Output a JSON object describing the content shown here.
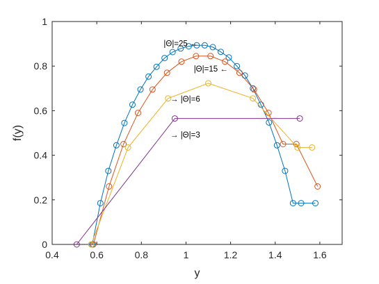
{
  "chart_data": {
    "type": "line",
    "xlabel": "y",
    "ylabel": "f(y)",
    "xlim": [
      0.4,
      1.7
    ],
    "ylim": [
      0,
      1
    ],
    "xticks": [
      "0.4",
      "0.6",
      "0.8",
      "1",
      "1.2",
      "1.4",
      "1.6"
    ],
    "yticks": [
      "0",
      "0.2",
      "0.4",
      "0.6",
      "0.8",
      "1"
    ],
    "grid": false,
    "box": true,
    "marker": "open-circle",
    "series": [
      {
        "color": "#0072BD",
        "x": [
          0.58,
          0.616,
          0.652,
          0.688,
          0.724,
          0.76,
          0.796,
          0.832,
          0.868,
          0.904,
          0.94,
          0.976,
          1.012,
          1.048,
          1.084,
          1.12,
          1.156,
          1.192,
          1.228,
          1.264,
          1.3,
          1.336,
          1.372,
          1.408,
          1.444,
          1.48,
          1.516,
          1.58
        ],
        "y": [
          0,
          0.185,
          0.33,
          0.445,
          0.545,
          0.627,
          0.695,
          0.753,
          0.797,
          0.836,
          0.863,
          0.879,
          0.889,
          0.893,
          0.893,
          0.885,
          0.864,
          0.839,
          0.8,
          0.758,
          0.7,
          0.627,
          0.547,
          0.445,
          0.33,
          0.185,
          0.185,
          0.185
        ]
      },
      {
        "color": "#D95319",
        "x": [
          0.585,
          0.655,
          0.72,
          0.785,
          0.85,
          0.915,
          0.98,
          1.045,
          1.11,
          1.175,
          1.24,
          1.305,
          1.37,
          1.435,
          1.495,
          1.59
        ],
        "y": [
          0,
          0.26,
          0.45,
          0.59,
          0.695,
          0.77,
          0.82,
          0.845,
          0.845,
          0.82,
          0.77,
          0.695,
          0.59,
          0.45,
          0.45,
          0.26
        ]
      },
      {
        "color": "#EDB120",
        "x": [
          0.575,
          0.74,
          0.92,
          1.1,
          1.3,
          1.5,
          1.565
        ],
        "y": [
          0,
          0.435,
          0.655,
          0.723,
          0.655,
          0.435,
          0.435
        ]
      },
      {
        "color": "#7E2F8E",
        "x": [
          0.51,
          0.95,
          1.51
        ],
        "y": [
          0,
          0.565,
          0.565
        ]
      }
    ],
    "annotations": [
      {
        "text": "|Θ|=25 ←",
        "x": 0.9,
        "y": 0.89
      },
      {
        "text": "|Θ|=15 ←",
        "x": 1.035,
        "y": 0.775
      },
      {
        "text": "→ |Θ|=6",
        "x": 0.93,
        "y": 0.64
      },
      {
        "text": "→ |Θ|=3",
        "x": 0.93,
        "y": 0.48
      }
    ]
  }
}
